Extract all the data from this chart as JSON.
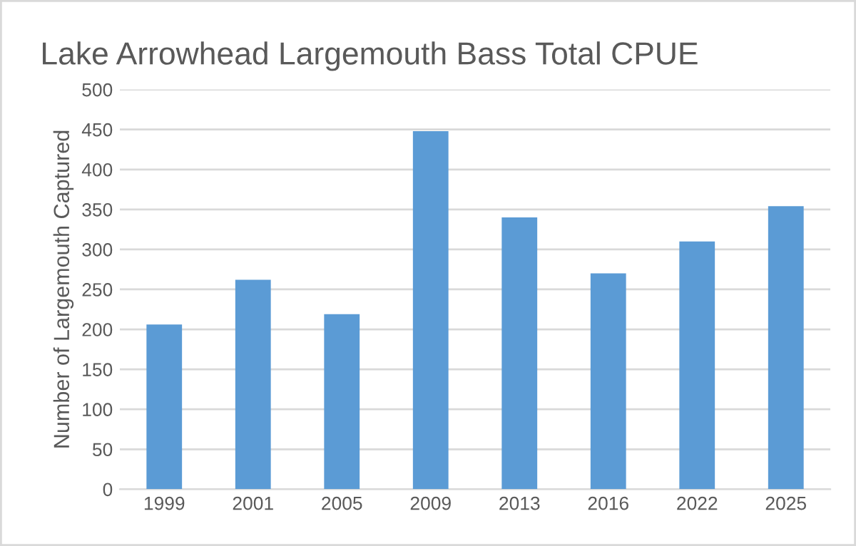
{
  "chart_data": {
    "type": "bar",
    "title": "Lake Arrowhead Largemouth Bass Total CPUE",
    "ylabel": "Number of Largemouth Captured",
    "categories": [
      "1999",
      "2001",
      "2005",
      "2009",
      "2013",
      "2016",
      "2022",
      "2025"
    ],
    "values": [
      206,
      262,
      219,
      448,
      340,
      270,
      310,
      354
    ],
    "color": "#5b9bd5",
    "ylim": [
      0,
      500
    ],
    "yticks": [
      0,
      50,
      100,
      150,
      200,
      250,
      300,
      350,
      400,
      450,
      500
    ],
    "grid": "y"
  }
}
